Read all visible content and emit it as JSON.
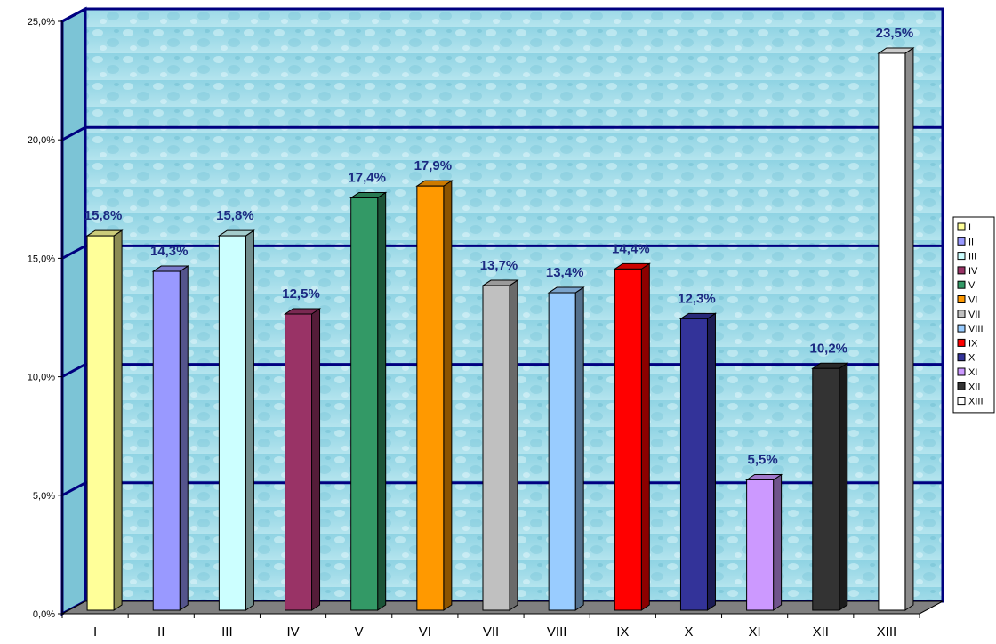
{
  "chart_data": {
    "type": "bar",
    "categories": [
      "I",
      "II",
      "III",
      "IV",
      "V",
      "VI",
      "VII",
      "VIII",
      "IX",
      "X",
      "XI",
      "XII",
      "XIII"
    ],
    "values": [
      15.8,
      14.3,
      15.8,
      12.5,
      17.4,
      17.9,
      13.7,
      13.4,
      14.4,
      12.3,
      5.5,
      10.2,
      23.5
    ],
    "value_labels": [
      "15,8%",
      "14,3%",
      "15,8%",
      "12,5%",
      "17,4%",
      "17,9%",
      "13,7%",
      "13,4%",
      "14,4%",
      "12,3%",
      "5,5%",
      "10,2%",
      "23,5%"
    ],
    "colors": [
      "#ffff99",
      "#9999ff",
      "#ccffff",
      "#993366",
      "#339966",
      "#ff9900",
      "#c0c0c0",
      "#99ccff",
      "#ff0000",
      "#333399",
      "#cc99ff",
      "#333333",
      "#ffffff"
    ],
    "ylim": [
      0,
      25
    ],
    "yticks": [
      0,
      5,
      10,
      15,
      20,
      25
    ],
    "ytick_labels": [
      "0,0%",
      "5,0%",
      "10,0%",
      "15,0%",
      "20,0%",
      "25,0%"
    ],
    "title": "",
    "xlabel": "",
    "ylabel": "",
    "grid": true,
    "gridline_color": "#000080",
    "legend": {
      "position": "right",
      "entries": [
        "I",
        "II",
        "III",
        "IV",
        "V",
        "VI",
        "VII",
        "VIII",
        "IX",
        "X",
        "XI",
        "XII",
        "XIII"
      ]
    },
    "background": "water-texture"
  }
}
